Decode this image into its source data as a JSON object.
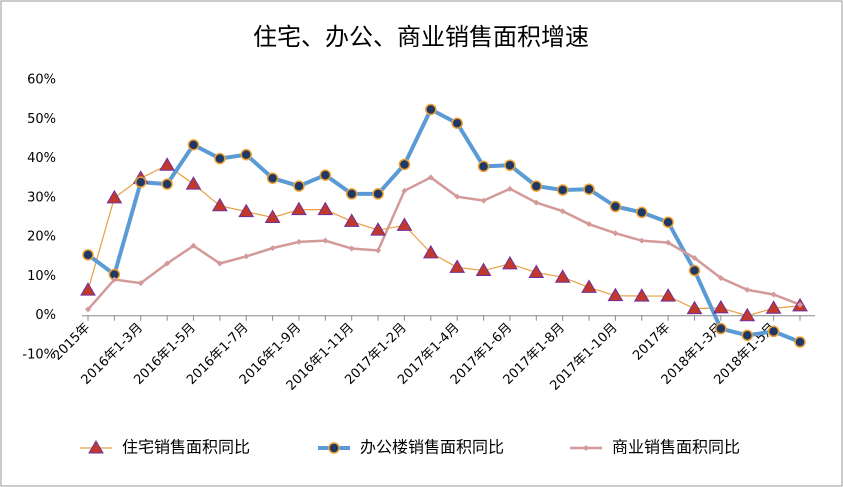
{
  "chart_data": {
    "type": "line",
    "title": "住宅、办公、商业销售面积增速",
    "categories": [
      "2015年",
      null,
      "2016年1-3月",
      null,
      "2016年1-5月",
      null,
      "2016年1-7月",
      null,
      "2016年1-9月",
      null,
      "2016年1-11月",
      null,
      "2017年1-2月",
      null,
      "2017年1-4月",
      null,
      "2017年1-6月",
      null,
      "2017年1-8月",
      null,
      "2017年1-10月",
      null,
      "2017年",
      null,
      "2018年1-3月",
      null,
      "2018年1-5月",
      null
    ],
    "ylim": [
      -10,
      60
    ],
    "yticks": [
      {
        "value": -10,
        "label": "-10%"
      },
      {
        "value": 0,
        "label": "0%"
      },
      {
        "value": 10,
        "label": "10%"
      },
      {
        "value": 20,
        "label": "20%"
      },
      {
        "value": 30,
        "label": "30%"
      },
      {
        "value": 40,
        "label": "40%"
      },
      {
        "value": 50,
        "label": "50%"
      },
      {
        "value": 60,
        "label": "60%"
      }
    ],
    "grid": false,
    "legend": "bottom",
    "series": [
      {
        "name": "住宅销售面积同比",
        "color": "#c0392b",
        "marker": "triangle",
        "values": [
          6.5,
          30,
          35,
          38.3,
          33.5,
          28,
          26.5,
          25,
          27,
          27,
          24,
          21.8,
          23,
          16,
          12.3,
          11.5,
          13.2,
          11,
          9.8,
          7.2,
          5.1,
          5,
          5,
          1.8,
          2,
          0,
          1.9,
          2.5
        ]
      },
      {
        "name": "办公楼销售面积同比",
        "color": "#5b9bd5",
        "marker": "circle",
        "values": [
          15.5,
          10.5,
          34,
          33.5,
          43.5,
          40,
          41,
          35,
          33,
          35.8,
          31,
          31,
          38.5,
          52.5,
          49,
          38,
          38.3,
          33,
          32,
          32.2,
          27.8,
          26.3,
          23.8,
          11.5,
          -3.3,
          -5,
          -4,
          -6.7
        ]
      },
      {
        "name": "商业销售面积同比",
        "color": "#d49a9a",
        "marker": "diamond",
        "values": [
          1.6,
          9.2,
          8.3,
          13.3,
          17.8,
          13.3,
          15.1,
          17.2,
          18.8,
          19.1,
          17.1,
          16.6,
          31.8,
          35.2,
          30.3,
          29.3,
          32.3,
          28.8,
          26.6,
          23.3,
          21,
          19.1,
          18.6,
          14.7,
          9.6,
          6.6,
          5.4,
          2.8
        ]
      }
    ]
  }
}
